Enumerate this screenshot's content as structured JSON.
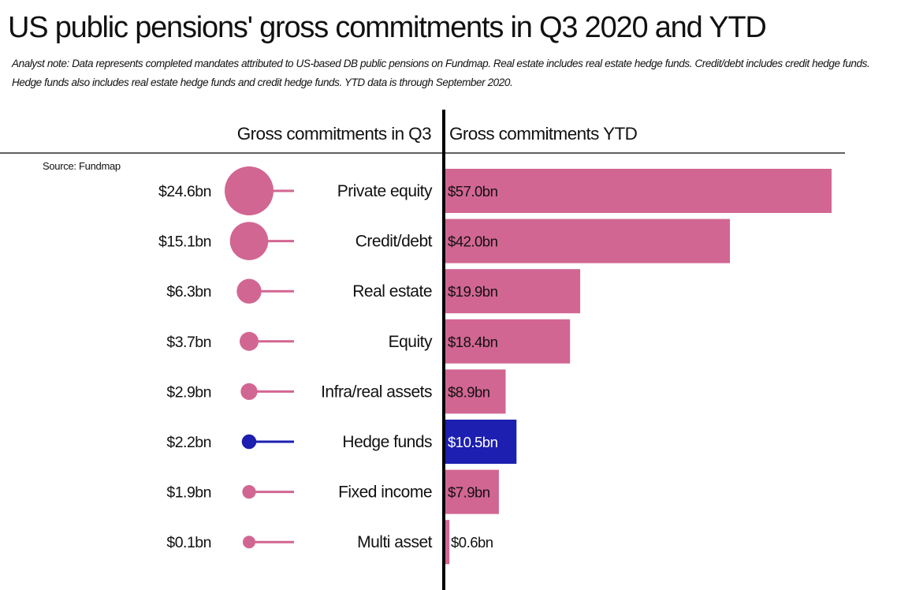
{
  "title": "US public pensions' gross commitments in Q3 2020 and YTD",
  "note": "Analyst note: Data represents completed mandates attributed to US-based DB public pensions on Fundmap. Real estate includes real estate hedge funds. Credit/debt includes credit hedge funds. Hedge funds also includes real estate hedge funds and credit hedge funds. YTD data is through September 2020.",
  "source": "Source: Fundmap",
  "colors": {
    "default": "#d26692",
    "highlight": "#1c1fb0",
    "text": "#111111",
    "axis": "#000000"
  },
  "chart_data": {
    "type": "bar",
    "left_header": "Gross commitments in Q3",
    "right_header": "Gross commitments YTD",
    "categories": [
      "Private equity",
      "Credit/debt",
      "Real estate",
      "Equity",
      "Infra/real assets",
      "Hedge funds",
      "Fixed income",
      "Multi asset"
    ],
    "series": [
      {
        "name": "Gross commitments in Q3",
        "values": [
          24.6,
          15.1,
          6.3,
          3.7,
          2.9,
          2.2,
          1.9,
          0.1
        ],
        "labels": [
          "$24.6bn",
          "$15.1bn",
          "$6.3bn",
          "$3.7bn",
          "$2.9bn",
          "$2.2bn",
          "$1.9bn",
          "$0.1bn"
        ]
      },
      {
        "name": "Gross commitments YTD",
        "values": [
          57.0,
          42.0,
          19.9,
          18.4,
          8.9,
          10.5,
          7.9,
          0.6
        ],
        "labels": [
          "$57.0bn",
          "$42.0bn",
          "$19.9bn",
          "$18.4bn",
          "$8.9bn",
          "$10.5bn",
          "$7.9bn",
          "$0.6bn"
        ]
      }
    ],
    "highlight_category": "Hedge funds",
    "grid": false,
    "legend": "none"
  }
}
